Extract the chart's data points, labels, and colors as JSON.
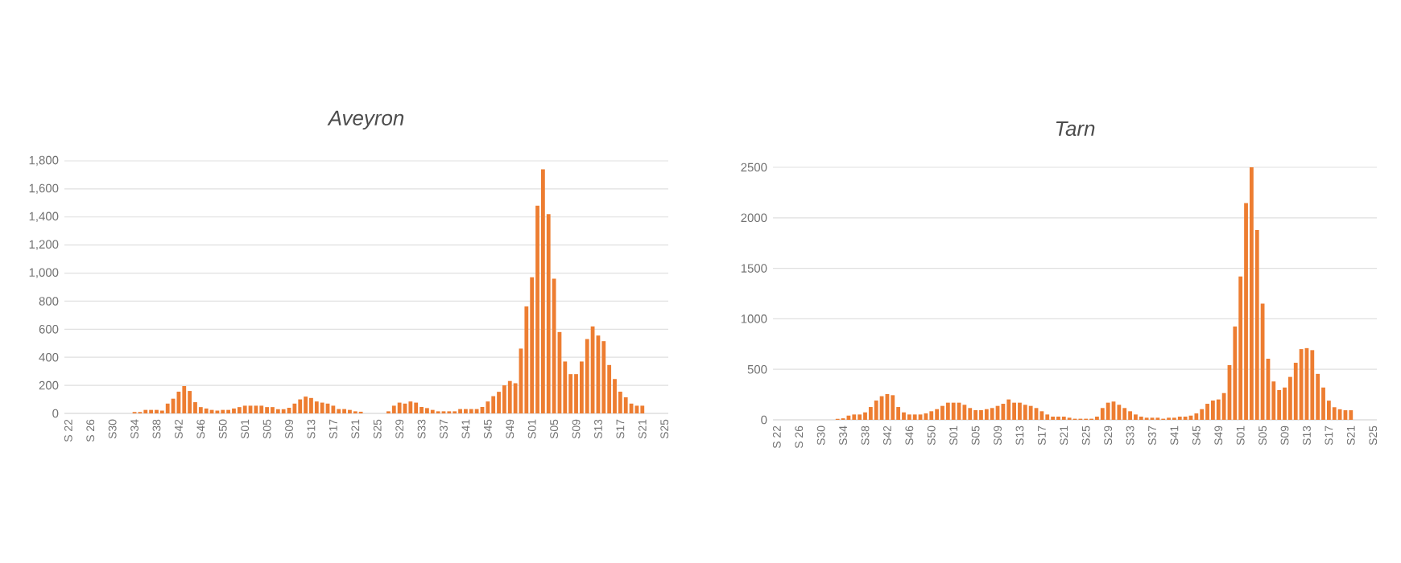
{
  "chart_data": [
    {
      "type": "bar",
      "title": "Aveyron",
      "color": "#ed7d31",
      "grid": "y",
      "categories": [
        "S 22",
        null,
        null,
        null,
        "S 26",
        null,
        null,
        null,
        "S30",
        null,
        null,
        null,
        "S34",
        null,
        null,
        null,
        "S38",
        null,
        null,
        null,
        "S42",
        null,
        null,
        null,
        "S46",
        null,
        null,
        null,
        "S50",
        null,
        null,
        null,
        "S01",
        null,
        null,
        null,
        "S05",
        null,
        null,
        null,
        "S09",
        null,
        null,
        null,
        "S13",
        null,
        null,
        null,
        "S17",
        null,
        null,
        null,
        "S21",
        null,
        null,
        null,
        "S25",
        null,
        null,
        null,
        "S29",
        null,
        null,
        null,
        "S33",
        null,
        null,
        null,
        "S37",
        null,
        null,
        null,
        "S41",
        null,
        null,
        null,
        "S45",
        null,
        null,
        null,
        "S49",
        null,
        null,
        null,
        "S01",
        null,
        null,
        null,
        "S05",
        null,
        null,
        null,
        "S09",
        null,
        null,
        null,
        "S13",
        null,
        null,
        null,
        "S17",
        null,
        null,
        null,
        "S21",
        null,
        null,
        null,
        "S25"
      ],
      "values": [
        0,
        0,
        0,
        0,
        0,
        0,
        0,
        0,
        0,
        0,
        0,
        0,
        10,
        10,
        25,
        25,
        25,
        20,
        70,
        105,
        155,
        195,
        160,
        80,
        45,
        35,
        25,
        20,
        25,
        25,
        35,
        45,
        55,
        55,
        55,
        55,
        45,
        45,
        30,
        30,
        40,
        70,
        100,
        120,
        110,
        85,
        77,
        70,
        55,
        31,
        31,
        25,
        15,
        12,
        0,
        0,
        0,
        0,
        15,
        55,
        77,
        70,
        85,
        77,
        46,
        38,
        25,
        15,
        15,
        15,
        15,
        31,
        31,
        31,
        31,
        46,
        85,
        123,
        154,
        200,
        231,
        215,
        462,
        762,
        970,
        1480,
        1740,
        1420,
        960,
        580,
        370,
        280,
        280,
        370,
        530,
        620,
        555,
        515,
        345,
        245,
        155,
        115,
        70,
        55,
        55,
        null,
        null,
        null,
        null
      ],
      "ylim": [
        0,
        1800
      ],
      "yticks": [
        0,
        200,
        400,
        600,
        800,
        {
          "value": 1000,
          "label": "1,000"
        },
        {
          "value": 1200,
          "label": "1,200"
        },
        {
          "value": 1400,
          "label": "1,400"
        },
        {
          "value": 1600,
          "label": "1,600"
        },
        {
          "value": 1800,
          "label": "1,800"
        }
      ]
    },
    {
      "type": "bar",
      "title": "Tarn",
      "color": "#ed7d31",
      "grid": "y",
      "categories": [
        "S 22",
        null,
        null,
        null,
        "S 26",
        null,
        null,
        null,
        "S30",
        null,
        null,
        null,
        "S34",
        null,
        null,
        null,
        "S38",
        null,
        null,
        null,
        "S42",
        null,
        null,
        null,
        "S46",
        null,
        null,
        null,
        "S50",
        null,
        null,
        null,
        "S01",
        null,
        null,
        null,
        "S05",
        null,
        null,
        null,
        "S09",
        null,
        null,
        null,
        "S13",
        null,
        null,
        null,
        "S17",
        null,
        null,
        null,
        "S21",
        null,
        null,
        null,
        "S25",
        null,
        null,
        null,
        "S29",
        null,
        null,
        null,
        "S33",
        null,
        null,
        null,
        "S37",
        null,
        null,
        null,
        "S41",
        null,
        null,
        null,
        "S45",
        null,
        null,
        null,
        "S49",
        null,
        null,
        null,
        "S01",
        null,
        null,
        null,
        "S05",
        null,
        null,
        null,
        "S09",
        null,
        null,
        null,
        "S13",
        null,
        null,
        null,
        "S17",
        null,
        null,
        null,
        "S21",
        null,
        null,
        null,
        "S25"
      ],
      "values": [
        0,
        0,
        0,
        0,
        0,
        0,
        0,
        0,
        0,
        0,
        0,
        10,
        15,
        42,
        53,
        53,
        74,
        127,
        191,
        234,
        255,
        244,
        127,
        74,
        53,
        53,
        53,
        64,
        85,
        106,
        138,
        170,
        170,
        170,
        149,
        117,
        96,
        96,
        106,
        117,
        138,
        159,
        202,
        170,
        170,
        149,
        138,
        117,
        85,
        53,
        32,
        32,
        32,
        21,
        11,
        11,
        11,
        11,
        32,
        117,
        170,
        181,
        149,
        117,
        85,
        53,
        32,
        21,
        21,
        21,
        11,
        21,
        21,
        32,
        32,
        42,
        64,
        106,
        159,
        191,
        202,
        265,
        542,
        924,
        1420,
        2145,
        2500,
        1880,
        1150,
        605,
        380,
        295,
        320,
        425,
        565,
        700,
        710,
        690,
        455,
        320,
        190,
        125,
        105,
        95,
        95,
        null,
        null,
        null,
        null
      ],
      "ylim": [
        0,
        2500
      ],
      "yticks": [
        0,
        500,
        1000,
        1500,
        2000,
        2500
      ]
    }
  ]
}
